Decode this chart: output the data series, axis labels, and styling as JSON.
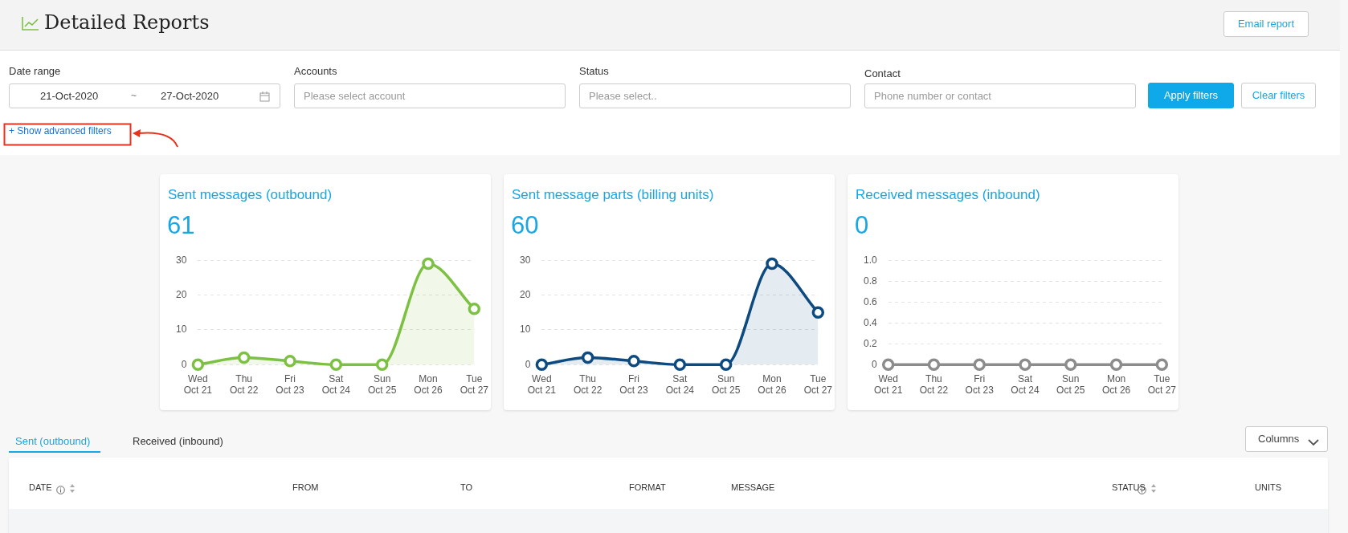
{
  "chart_data": [
    {
      "type": "other",
      "title": "Detailed Reports",
      "annotations": [
        "Email report",
        "Date range",
        "21-Oct-2020",
        "~",
        "27-Oct-2020",
        "Accounts",
        "Please select account",
        "Status",
        "Please select..",
        "Contact",
        "Phone number or contact",
        "Apply filters",
        "Clear filters",
        "+ Show advanced filters"
      ]
    },
    {
      "type": "area",
      "title": "Sent messages (outbound)",
      "subtitle": "61",
      "categories": [
        "Wed\nOct 21",
        "Thu\nOct 22",
        "Fri\nOct 23",
        "Sat\nOct 24",
        "Sun\nOct 25",
        "Mon\nOct 26",
        "Tue\nOct 27"
      ],
      "series": [
        {
          "color": "#7dc142",
          "values": [
            0,
            2,
            1,
            0,
            0,
            29,
            16
          ]
        }
      ],
      "ylim": [
        0,
        30
      ],
      "yticks": [
        0,
        10,
        20,
        30
      ],
      "grid": "y",
      "legend": false,
      "marker": "circle"
    },
    {
      "type": "area",
      "title": "Sent message parts (billing units)",
      "subtitle": "60",
      "categories": [
        "Wed\nOct 21",
        "Thu\nOct 22",
        "Fri\nOct 23",
        "Sat\nOct 24",
        "Sun\nOct 25",
        "Mon\nOct 26",
        "Tue\nOct 27"
      ],
      "series": [
        {
          "color": "#0d4a80",
          "values": [
            0,
            2,
            1,
            0,
            0,
            29,
            15
          ]
        }
      ],
      "ylim": [
        0,
        30
      ],
      "yticks": [
        0,
        10,
        20,
        30
      ],
      "grid": "y",
      "legend": false,
      "marker": "circle"
    },
    {
      "type": "line",
      "title": "Received messages (inbound)",
      "subtitle": "0",
      "categories": [
        "Wed\nOct 21",
        "Thu\nOct 22",
        "Fri\nOct 23",
        "Sat\nOct 24",
        "Sun\nOct 25",
        "Mon\nOct 26",
        "Tue\nOct 27"
      ],
      "series": [
        {
          "color": "#8c8c8c",
          "values": [
            0,
            0,
            0,
            0,
            0,
            0,
            0
          ]
        }
      ],
      "ylim": [
        0,
        1
      ],
      "yticks": [
        0,
        {
          "value": 0.2,
          "label": "0.2"
        },
        {
          "value": 0.4,
          "label": "0.4"
        },
        {
          "value": 0.6,
          "label": "0.6"
        },
        {
          "value": 0.8,
          "label": "0.8"
        },
        {
          "value": 1,
          "label": "1.0"
        }
      ],
      "grid": "y",
      "legend": false,
      "marker": "circle"
    },
    {
      "type": "other",
      "annotations": [
        "Sent (outbound)",
        "Received (inbound)",
        "Columns",
        "DATE",
        "FROM",
        "TO",
        "FORMAT",
        "MESSAGE",
        "STATUS",
        "UNITS"
      ]
    }
  ]
}
